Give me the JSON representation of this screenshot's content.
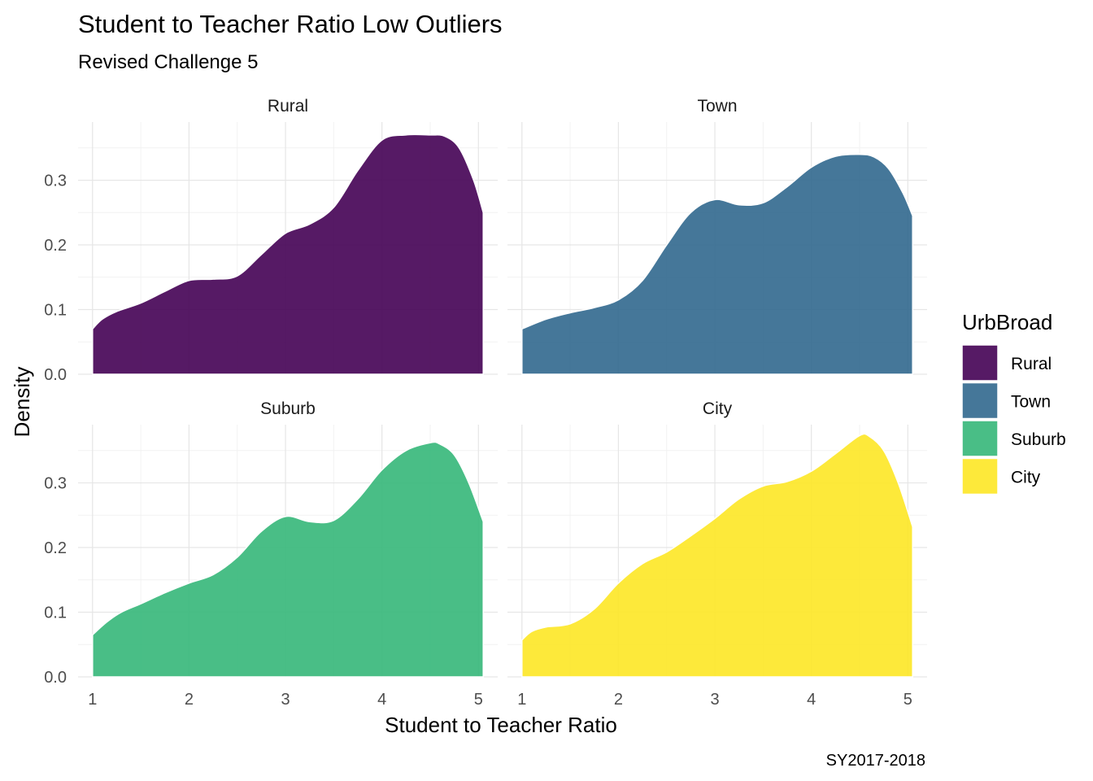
{
  "chart_data": {
    "type": "area",
    "title": "Student to Teacher Ratio Low Outliers",
    "subtitle": "Revised Challenge 5",
    "xlabel": "Student to Teacher Ratio",
    "ylabel": "Density",
    "caption": "SY2017-2018",
    "xlim": [
      0.85,
      5.2
    ],
    "ylim": [
      0,
      0.39
    ],
    "x_ticks": [
      1,
      2,
      3,
      4,
      5
    ],
    "y_ticks": [
      0.0,
      0.1,
      0.2,
      0.3
    ],
    "y_tick_labels": [
      "0.0",
      "0.1",
      "0.2",
      "0.3"
    ],
    "legend": {
      "title": "UrbBroad",
      "position": "right",
      "entries": [
        "Rural",
        "Town",
        "Suburb",
        "City"
      ]
    },
    "grid": true,
    "panels": [
      {
        "name": "Rural",
        "color": "#440154",
        "x": [
          1.0,
          1.1,
          1.25,
          1.5,
          1.75,
          2.0,
          2.25,
          2.5,
          2.75,
          3.0,
          3.25,
          3.5,
          3.75,
          4.0,
          4.25,
          4.5,
          4.65,
          4.8,
          4.95,
          5.05
        ],
        "y": [
          0.07,
          0.085,
          0.097,
          0.11,
          0.128,
          0.145,
          0.147,
          0.152,
          0.185,
          0.218,
          0.232,
          0.258,
          0.315,
          0.362,
          0.37,
          0.37,
          0.368,
          0.35,
          0.3,
          0.25
        ]
      },
      {
        "name": "Town",
        "color": "#31688E",
        "x": [
          1.0,
          1.25,
          1.5,
          1.75,
          2.0,
          2.25,
          2.5,
          2.75,
          3.0,
          3.25,
          3.5,
          3.75,
          4.0,
          4.25,
          4.5,
          4.65,
          4.8,
          4.95,
          5.05
        ],
        "y": [
          0.07,
          0.085,
          0.095,
          0.103,
          0.115,
          0.145,
          0.2,
          0.25,
          0.27,
          0.262,
          0.265,
          0.29,
          0.32,
          0.337,
          0.34,
          0.336,
          0.318,
          0.28,
          0.245
        ]
      },
      {
        "name": "Suburb",
        "color": "#35B779",
        "x": [
          1.0,
          1.15,
          1.3,
          1.5,
          1.75,
          2.0,
          2.25,
          2.5,
          2.75,
          3.0,
          3.25,
          3.5,
          3.75,
          4.0,
          4.25,
          4.5,
          4.6,
          4.75,
          4.9,
          5.05
        ],
        "y": [
          0.065,
          0.085,
          0.1,
          0.113,
          0.13,
          0.145,
          0.158,
          0.185,
          0.225,
          0.248,
          0.24,
          0.242,
          0.275,
          0.32,
          0.35,
          0.362,
          0.36,
          0.343,
          0.3,
          0.24
        ]
      },
      {
        "name": "City",
        "color": "#FDE725",
        "x": [
          1.0,
          1.1,
          1.25,
          1.5,
          1.75,
          2.0,
          2.25,
          2.5,
          2.75,
          3.0,
          3.25,
          3.5,
          3.75,
          4.0,
          4.25,
          4.5,
          4.6,
          4.75,
          4.9,
          5.05
        ],
        "y": [
          0.057,
          0.07,
          0.077,
          0.082,
          0.105,
          0.145,
          0.175,
          0.193,
          0.218,
          0.245,
          0.275,
          0.295,
          0.302,
          0.318,
          0.345,
          0.373,
          0.372,
          0.35,
          0.3,
          0.232
        ]
      }
    ]
  }
}
